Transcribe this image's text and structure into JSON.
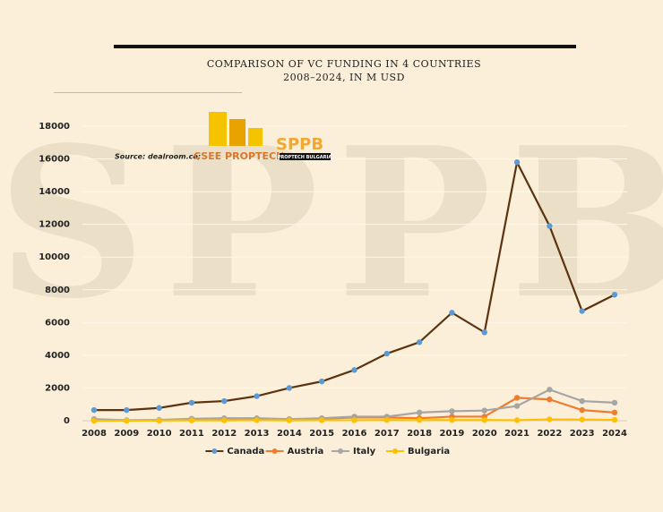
{
  "chart_data": {
    "type": "line",
    "title": "COMPARISON OF VC FUNDING IN 4 COUNTRIES",
    "subtitle": "2008–2024, IN M USD",
    "source": "Source: dealroom.co;",
    "logo_texts": [
      "CSEE PROPTECH",
      "SPPB",
      "PROPTECH BULGARIA"
    ],
    "watermark": "SPPB",
    "categories": [
      "2008",
      "2009",
      "2010",
      "2011",
      "2012",
      "2013",
      "2014",
      "2015",
      "2016",
      "2017",
      "2018",
      "2019",
      "2020",
      "2021",
      "2022",
      "2023",
      "2024"
    ],
    "series": [
      {
        "name": "Canada",
        "color": "#5c3310",
        "marker_color": "#5b9bd5",
        "values": [
          650,
          650,
          780,
          1100,
          1200,
          1500,
          2000,
          2400,
          3100,
          4100,
          4800,
          6600,
          5400,
          15800,
          11900,
          6700,
          7700
        ]
      },
      {
        "name": "Austria",
        "color": "#ed7d31",
        "marker_color": "#ed7d31",
        "values": [
          50,
          20,
          30,
          60,
          80,
          100,
          80,
          120,
          200,
          200,
          150,
          250,
          250,
          1400,
          1300,
          650,
          500
        ]
      },
      {
        "name": "Italy",
        "color": "#a5a5a5",
        "marker_color": "#a5a5a5",
        "values": [
          100,
          30,
          50,
          120,
          150,
          150,
          100,
          150,
          250,
          250,
          500,
          580,
          620,
          900,
          1900,
          1200,
          1100
        ]
      },
      {
        "name": "Bulgaria",
        "color": "#ffc000",
        "marker_color": "#ffc000",
        "values": [
          0,
          0,
          10,
          20,
          20,
          30,
          20,
          30,
          30,
          40,
          40,
          40,
          40,
          30,
          80,
          70,
          50
        ]
      }
    ],
    "ylim": [
      0,
      18000
    ],
    "yticks": [
      0,
      2000,
      4000,
      6000,
      8000,
      10000,
      12000,
      14000,
      16000,
      18000
    ],
    "grid": true,
    "legend": "bottom"
  }
}
